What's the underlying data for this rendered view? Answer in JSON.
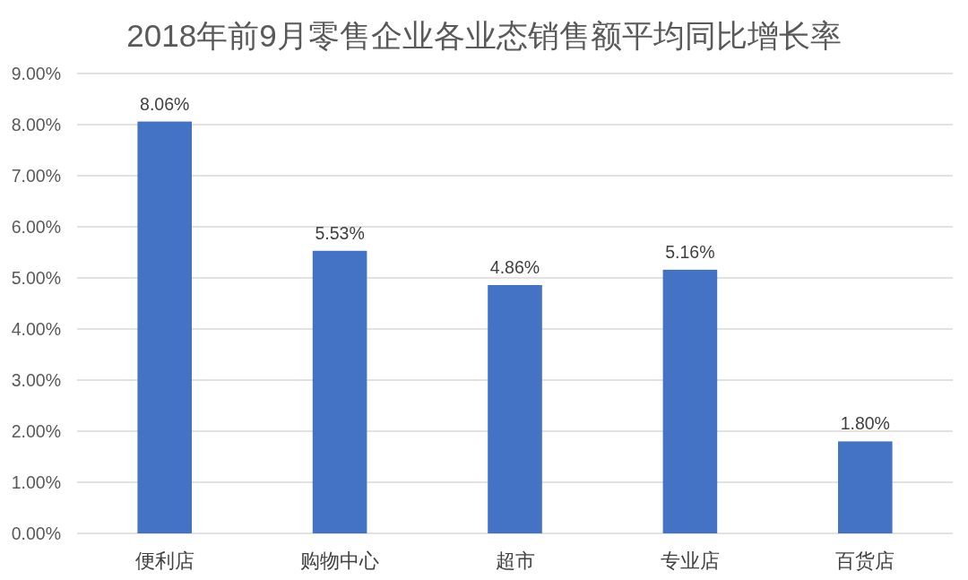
{
  "chart_data": {
    "type": "bar",
    "title": "2018年前9月零售企业各业态销售额平均同比增长率",
    "categories": [
      "便利店",
      "购物中心",
      "超市",
      "专业店",
      "百货店"
    ],
    "values": [
      8.06,
      5.53,
      4.86,
      5.16,
      1.8
    ],
    "value_labels": [
      "8.06%",
      "5.53%",
      "4.86%",
      "5.16%",
      "1.80%"
    ],
    "color": "#4472c4",
    "ylim": [
      0,
      9
    ],
    "yticks": [
      {
        "value": 0,
        "label": "0.00%"
      },
      {
        "value": 1,
        "label": "1.00%"
      },
      {
        "value": 2,
        "label": "2.00%"
      },
      {
        "value": 3,
        "label": "3.00%"
      },
      {
        "value": 4,
        "label": "4.00%"
      },
      {
        "value": 5,
        "label": "5.00%"
      },
      {
        "value": 6,
        "label": "6.00%"
      },
      {
        "value": 7,
        "label": "7.00%"
      },
      {
        "value": 8,
        "label": "8.00%"
      },
      {
        "value": 9,
        "label": "9.00%"
      }
    ],
    "grid": "y"
  }
}
